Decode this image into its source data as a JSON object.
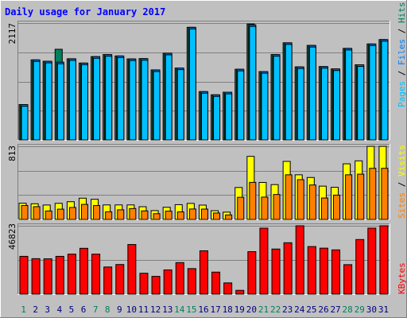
{
  "chart_data": [
    {
      "type": "bar",
      "title": "Daily usage for January 2017",
      "x": [
        "1",
        "2",
        "3",
        "4",
        "5",
        "6",
        "7",
        "8",
        "9",
        "10",
        "11",
        "12",
        "13",
        "14",
        "15",
        "16",
        "17",
        "18",
        "19",
        "20",
        "21",
        "22",
        "23",
        "24",
        "25",
        "26",
        "27",
        "28",
        "29",
        "30",
        "31"
      ],
      "weekend_days": [
        "1",
        "7",
        "8",
        "14",
        "15",
        "21",
        "22",
        "28",
        "29"
      ],
      "ymax_label": "2117",
      "ymax": 2117,
      "series": [
        {
          "name": "Pages",
          "color": "#00c0ff",
          "values": [
            0,
            0,
            0,
            0,
            0,
            0,
            0,
            0,
            0,
            0,
            0,
            0,
            0,
            0,
            0,
            0,
            0,
            0,
            0,
            0,
            0,
            0,
            0,
            0,
            0,
            0,
            0,
            0,
            0,
            0,
            0
          ]
        },
        {
          "name": "Files",
          "color": "#0080ff",
          "values": [
            640,
            1450,
            1425,
            1409,
            1470,
            1392,
            1509,
            1546,
            1521,
            1467,
            1473,
            1268,
            1570,
            1302,
            2040,
            875,
            817,
            864,
            1280,
            2085,
            1238,
            1546,
            1759,
            1323,
            1712,
            1329,
            1286,
            1658,
            1361,
            1738,
            1500
          ]
        },
        {
          "name": "Hits",
          "color": "#00805c",
          "values": [
            640,
            1450,
            1425,
            1642,
            1470,
            1392,
            1509,
            1546,
            1521,
            1467,
            1473,
            1268,
            1570,
            1302,
            2040,
            875,
            817,
            864,
            1280,
            2101,
            1238,
            1546,
            1759,
            1323,
            1712,
            1329,
            1286,
            1658,
            1361,
            1738,
            1500
          ]
        }
      ]
    },
    {
      "type": "bar",
      "x": [
        "1",
        "2",
        "3",
        "4",
        "5",
        "6",
        "7",
        "8",
        "9",
        "10",
        "11",
        "12",
        "13",
        "14",
        "15",
        "16",
        "17",
        "18",
        "19",
        "20",
        "21",
        "22",
        "23",
        "24",
        "25",
        "26",
        "27",
        "28",
        "29",
        "30",
        "31"
      ],
      "ymax_label": "813",
      "ymax": 813,
      "series": [
        {
          "name": "Sites",
          "color": "#ff8000",
          "values": [
            155,
            142,
            94,
            114,
            133,
            167,
            154,
            85,
            107,
            121,
            95,
            64,
            92,
            84,
            116,
            115,
            71,
            50,
            246,
            412,
            248,
            277,
            496,
            442,
            383,
            238,
            270,
            496,
            503,
            568,
            0
          ]
        },
        {
          "name": "Visits",
          "color": "#ffff00",
          "values": [
            180,
            174,
            160,
            179,
            197,
            236,
            224,
            161,
            161,
            161,
            141,
            98,
            135,
            164,
            178,
            159,
            97,
            81,
            355,
            701,
            411,
            387,
            645,
            496,
            466,
            370,
            357,
            618,
            651,
            812,
            0
          ]
        }
      ]
    },
    {
      "type": "bar",
      "x": [
        "1",
        "2",
        "3",
        "4",
        "5",
        "6",
        "7",
        "8",
        "9",
        "10",
        "11",
        "12",
        "13",
        "14",
        "15",
        "16",
        "17",
        "18",
        "19",
        "20",
        "21",
        "22",
        "23",
        "24",
        "25",
        "26",
        "27",
        "28",
        "29",
        "30",
        "31"
      ],
      "ymax_label": "46823",
      "ymax": 46823,
      "series": [
        {
          "name": "KBytes",
          "color": "#ff0000",
          "values": [
            25900,
            24300,
            24200,
            25900,
            27400,
            31400,
            27400,
            18600,
            20300,
            34000,
            14300,
            12200,
            16600,
            21600,
            17500,
            29700,
            15100,
            7700,
            2600,
            29100,
            45200,
            30900,
            35200,
            0,
            32600,
            31500,
            30300,
            20200,
            37400,
            45200,
            0
          ]
        }
      ]
    }
  ],
  "override_last_day": {
    "pages_files_hits": 1818,
    "visits": 812,
    "sites": 568,
    "kbytes": 46823
  },
  "override_day24": {
    "kbytes": 46823
  }
}
